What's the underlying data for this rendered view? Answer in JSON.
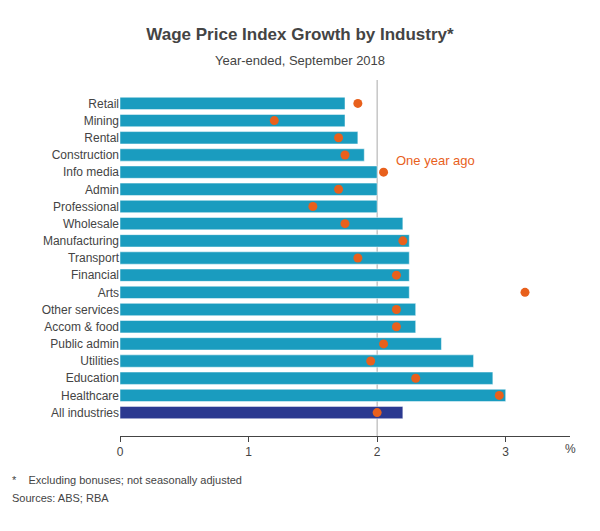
{
  "chart_data": {
    "type": "bar",
    "orientation": "horizontal",
    "title": "Wage Price Index Growth by Industry*",
    "subtitle": "Year-ended, September 2018",
    "xlabel": "%",
    "footnote": "*    Excluding bonuses; not seasonally adjusted",
    "sources": "Sources: ABS; RBA",
    "categories": [
      "Retail",
      "Mining",
      "Rental",
      "Construction",
      "Info media",
      "Admin",
      "Professional",
      "Wholesale",
      "Manufacturing",
      "Transport",
      "Financial",
      "Arts",
      "Other services",
      "Accom & food",
      "Public admin",
      "Utilities",
      "Education",
      "Healthcare",
      "All industries"
    ],
    "series": [
      {
        "type": "bar",
        "values": [
          1.75,
          1.75,
          1.85,
          1.9,
          2.0,
          2.0,
          2.0,
          2.2,
          2.25,
          2.25,
          2.25,
          2.25,
          2.3,
          2.3,
          2.5,
          2.75,
          2.9,
          3.0,
          2.2
        ],
        "colors": [
          "#1a9cbf",
          "#1a9cbf",
          "#1a9cbf",
          "#1a9cbf",
          "#1a9cbf",
          "#1a9cbf",
          "#1a9cbf",
          "#1a9cbf",
          "#1a9cbf",
          "#1a9cbf",
          "#1a9cbf",
          "#1a9cbf",
          "#1a9cbf",
          "#1a9cbf",
          "#1a9cbf",
          "#1a9cbf",
          "#1a9cbf",
          "#1a9cbf",
          "#2b3990"
        ]
      },
      {
        "type": "scatter",
        "values": [
          1.85,
          1.2,
          1.7,
          1.75,
          2.05,
          1.7,
          1.5,
          1.75,
          2.2,
          1.85,
          2.15,
          3.15,
          2.15,
          2.15,
          2.05,
          1.95,
          2.3,
          2.95,
          2.0
        ],
        "color": "#e8601c",
        "marker": "circle"
      }
    ],
    "annotations": [
      {
        "text": "One year ago",
        "category": "Info media"
      }
    ],
    "vline_x": 2,
    "xlim": [
      0,
      3.5
    ],
    "xticks": [
      0,
      1,
      2,
      3
    ],
    "grid": false
  }
}
